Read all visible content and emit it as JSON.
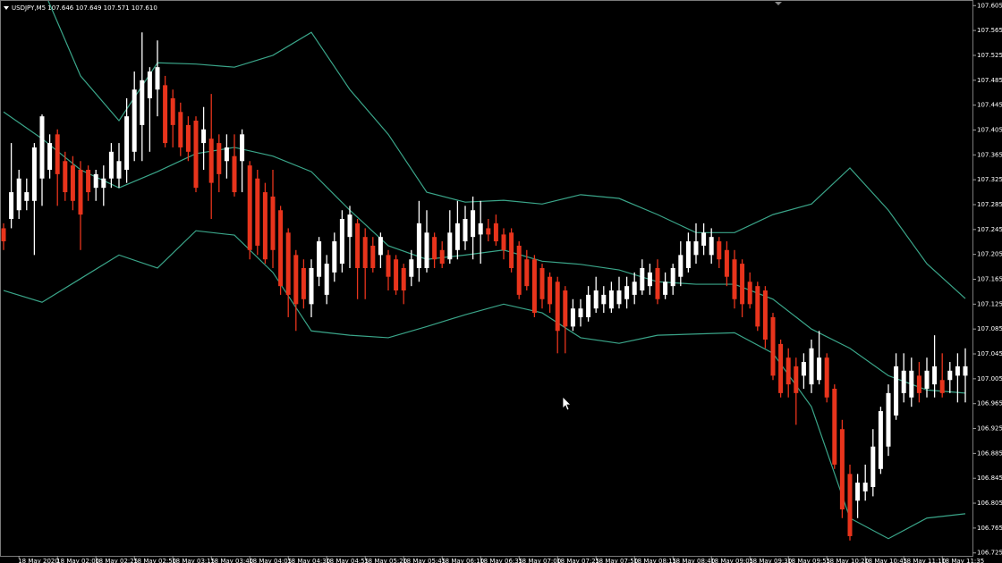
{
  "chart_data": {
    "type": "candlestick",
    "title": "USDJPY,M5 107.646 107.649 107.571 107.610",
    "up_color": "#ffffff",
    "down_color": "#e8341c",
    "open": [
      107.247,
      107.262,
      107.276,
      107.291,
      107.291,
      107.327,
      107.341,
      107.398,
      107.355,
      107.348,
      107.341,
      107.341,
      107.312,
      107.312,
      107.327,
      107.327,
      107.341,
      107.37,
      107.413,
      107.456,
      107.47,
      107.477,
      107.456,
      107.434,
      107.413,
      107.42,
      107.384,
      107.391,
      107.384,
      107.355,
      107.363,
      107.355,
      107.348,
      107.327,
      107.305,
      107.298,
      107.276,
      107.24,
      107.204,
      107.183,
      107.125,
      107.169,
      107.14,
      107.176,
      107.19,
      107.233,
      107.255,
      107.233,
      107.219,
      107.204,
      107.204,
      107.197,
      107.183,
      107.169,
      107.183,
      107.183,
      107.233,
      107.212,
      107.197,
      107.212,
      107.226,
      107.233,
      107.237,
      107.247,
      107.255,
      107.237,
      107.24,
      107.219,
      107.197,
      107.197,
      107.183,
      107.169,
      107.161,
      107.147,
      107.089,
      107.104,
      107.104,
      107.118,
      107.125,
      107.118,
      107.125,
      107.133,
      107.14,
      107.147,
      107.154,
      107.183,
      107.14,
      107.154,
      107.169,
      107.183,
      107.204,
      107.219,
      107.204,
      107.226,
      107.212,
      107.197,
      107.19,
      107.161,
      107.154,
      107.147,
      107.104,
      107.061,
      107.039,
      107.025,
      107.01,
      106.996,
      107.003,
      107.039,
      106.989,
      106.924,
      106.852,
      106.809,
      106.824,
      106.831,
      106.86,
      106.896,
      106.946,
      106.982,
      106.975,
      107.01,
      106.989,
      106.996,
      107.003,
      107.003,
      107.01,
      107.01
    ],
    "high": [
      107.255,
      107.384,
      107.341,
      107.327,
      107.384,
      107.43,
      107.398,
      107.406,
      107.37,
      107.363,
      107.355,
      107.348,
      107.341,
      107.348,
      107.384,
      107.384,
      107.456,
      107.499,
      107.562,
      107.506,
      107.549,
      107.492,
      107.47,
      107.449,
      107.427,
      107.427,
      107.442,
      107.463,
      107.398,
      107.398,
      107.398,
      107.406,
      107.355,
      107.341,
      107.32,
      107.341,
      107.283,
      107.247,
      107.212,
      107.197,
      107.197,
      107.233,
      107.204,
      107.24,
      107.276,
      107.283,
      107.262,
      107.247,
      107.233,
      107.24,
      107.212,
      107.204,
      107.19,
      107.212,
      107.291,
      107.276,
      107.24,
      107.226,
      107.276,
      107.291,
      107.283,
      107.298,
      107.291,
      107.262,
      107.269,
      107.247,
      107.247,
      107.226,
      107.212,
      107.204,
      107.19,
      107.176,
      107.169,
      107.154,
      107.133,
      107.133,
      107.154,
      107.169,
      107.154,
      107.161,
      107.169,
      107.169,
      107.176,
      107.197,
      107.19,
      107.197,
      107.176,
      107.19,
      107.226,
      107.24,
      107.255,
      107.255,
      107.247,
      107.233,
      107.226,
      107.212,
      107.197,
      107.176,
      107.161,
      107.154,
      107.111,
      107.068,
      107.054,
      107.039,
      107.046,
      107.068,
      107.082,
      107.046,
      106.996,
      106.939,
      106.867,
      106.852,
      106.867,
      106.924,
      106.96,
      106.996,
      107.046,
      107.046,
      107.039,
      107.032,
      107.039,
      107.075,
      107.046,
      107.032,
      107.046,
      107.054
    ],
    "low": [
      107.212,
      107.247,
      107.262,
      107.276,
      107.204,
      107.283,
      107.327,
      107.283,
      107.291,
      107.276,
      107.212,
      107.291,
      107.291,
      107.283,
      107.312,
      107.312,
      107.32,
      107.355,
      107.355,
      107.37,
      107.427,
      107.377,
      107.377,
      107.363,
      107.355,
      107.305,
      107.341,
      107.262,
      107.305,
      107.327,
      107.298,
      107.305,
      107.197,
      107.204,
      107.19,
      107.183,
      107.14,
      107.104,
      107.082,
      107.118,
      107.104,
      107.154,
      107.125,
      107.161,
      107.176,
      107.183,
      107.133,
      107.133,
      107.176,
      107.183,
      107.147,
      107.14,
      107.125,
      107.154,
      107.161,
      107.176,
      107.183,
      107.183,
      107.19,
      107.197,
      107.212,
      107.197,
      107.19,
      107.226,
      107.219,
      107.197,
      107.176,
      107.133,
      107.147,
      107.104,
      107.118,
      107.111,
      107.046,
      107.046,
      107.082,
      107.089,
      107.097,
      107.111,
      107.111,
      107.111,
      107.118,
      107.118,
      107.125,
      107.14,
      107.14,
      107.125,
      107.133,
      107.14,
      107.154,
      107.176,
      107.19,
      107.204,
      107.19,
      107.183,
      107.154,
      107.118,
      107.104,
      107.118,
      107.082,
      107.054,
      107.003,
      106.975,
      106.975,
      106.931,
      106.989,
      106.982,
      106.996,
      106.967,
      106.86,
      106.781,
      106.745,
      106.781,
      106.809,
      106.816,
      106.852,
      106.881,
      106.939,
      106.967,
      106.96,
      106.967,
      106.975,
      106.975,
      106.975,
      106.982,
      106.967,
      106.967
    ],
    "close": [
      107.226,
      107.305,
      107.327,
      107.305,
      107.377,
      107.427,
      107.384,
      107.334,
      107.305,
      107.291,
      107.269,
      107.305,
      107.334,
      107.327,
      107.37,
      107.355,
      107.427,
      107.47,
      107.485,
      107.499,
      107.506,
      107.384,
      107.413,
      107.377,
      107.37,
      107.312,
      107.406,
      107.32,
      107.334,
      107.377,
      107.305,
      107.398,
      107.212,
      107.219,
      107.197,
      107.212,
      107.154,
      107.14,
      107.125,
      107.133,
      107.183,
      107.226,
      107.19,
      107.226,
      107.262,
      107.269,
      107.183,
      107.183,
      107.183,
      107.233,
      107.169,
      107.147,
      107.147,
      107.197,
      107.255,
      107.24,
      107.197,
      107.19,
      107.24,
      107.255,
      107.262,
      107.276,
      107.255,
      107.237,
      107.226,
      107.212,
      107.183,
      107.14,
      107.154,
      107.111,
      107.133,
      107.125,
      107.082,
      107.089,
      107.118,
      107.118,
      107.14,
      107.147,
      107.14,
      107.147,
      107.147,
      107.154,
      107.161,
      107.183,
      107.176,
      107.133,
      107.161,
      107.183,
      107.204,
      107.226,
      107.226,
      107.24,
      107.233,
      107.197,
      107.169,
      107.133,
      107.125,
      107.125,
      107.089,
      107.068,
      107.01,
      106.982,
      106.996,
      106.982,
      107.032,
      107.054,
      107.039,
      106.975,
      106.867,
      106.795,
      106.752,
      106.838,
      106.838,
      106.896,
      106.953,
      106.982,
      107.025,
      107.018,
      107.018,
      106.982,
      107.018,
      107.025,
      106.982,
      107.018,
      107.025,
      107.025
    ],
    "bands": {
      "color": "#3aa589",
      "x": [
        0,
        5,
        10,
        15,
        20,
        25,
        30,
        35,
        40,
        45,
        50,
        55,
        60,
        65,
        70,
        75,
        80,
        85,
        90,
        95,
        100,
        105,
        110,
        115,
        120,
        125
      ],
      "upper": [
        107.686,
        107.636,
        107.492,
        107.42,
        107.513,
        107.511,
        107.506,
        107.525,
        107.562,
        107.47,
        107.398,
        107.305,
        107.289,
        107.292,
        107.286,
        107.301,
        107.295,
        107.269,
        107.24,
        107.24,
        107.269,
        107.286,
        107.344,
        107.276,
        107.19,
        107.134
      ],
      "middle": [
        107.434,
        107.391,
        107.341,
        107.312,
        107.338,
        107.367,
        107.377,
        107.363,
        107.338,
        107.276,
        107.219,
        107.197,
        107.204,
        107.212,
        107.194,
        107.189,
        107.18,
        107.161,
        107.157,
        107.157,
        107.133,
        107.085,
        107.054,
        107.01,
        106.987,
        106.982
      ],
      "lower": [
        107.147,
        107.128,
        107.166,
        107.204,
        107.183,
        107.243,
        107.236,
        107.176,
        107.082,
        107.075,
        107.071,
        107.089,
        107.108,
        107.125,
        107.111,
        107.071,
        107.062,
        107.075,
        107.077,
        107.079,
        107.046,
        106.96,
        106.781,
        106.748,
        106.781,
        106.788
      ]
    },
    "x_labels": [
      "18 May 2020",
      "18 May 02:00",
      "18 May 02:25",
      "18 May 02:50",
      "18 May 03:15",
      "18 May 03:40",
      "18 May 04:05",
      "18 May 04:30",
      "18 May 04:55",
      "18 May 05:20",
      "18 May 05:45",
      "18 May 06:10",
      "18 May 06:35",
      "18 May 07:00",
      "18 May 07:25",
      "18 May 07:50",
      "18 May 08:15",
      "18 May 08:40",
      "18 May 09:05",
      "18 May 09:30",
      "18 May 09:55",
      "18 May 10:20",
      "18 May 10:45",
      "18 May 11:10",
      "18 May 11:35"
    ],
    "ylim": [
      106.716,
      107.614
    ],
    "yticks": [
      107.605,
      107.565,
      107.525,
      107.485,
      107.445,
      107.405,
      107.365,
      107.325,
      107.285,
      107.245,
      107.205,
      107.165,
      107.125,
      107.085,
      107.045,
      107.005,
      106.965,
      106.925,
      106.885,
      106.845,
      106.805,
      106.765,
      106.725
    ]
  }
}
